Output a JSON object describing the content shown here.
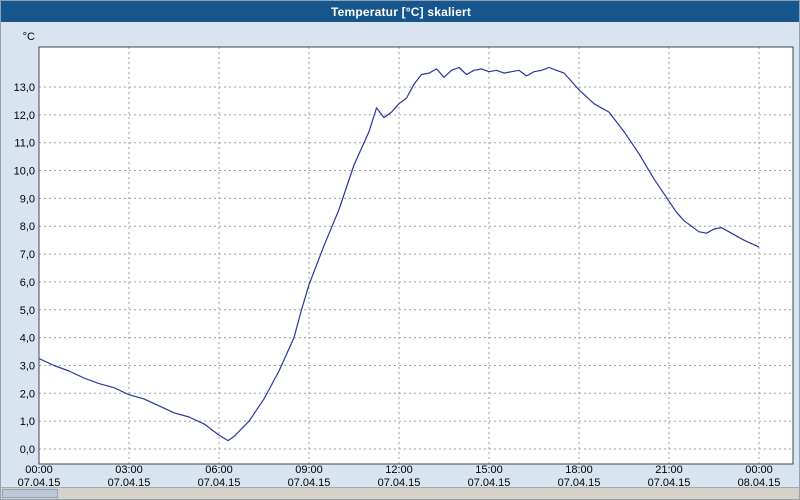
{
  "window": {
    "title": "Temperatur [°C] skaliert"
  },
  "chart_data": {
    "type": "line",
    "title": "Temperatur [°C] skaliert",
    "y_axis_unit": "°C",
    "ylim": [
      0,
      14
    ],
    "xlim_hours": [
      0,
      24
    ],
    "grid": true,
    "grid_style": "dashed",
    "line_color": "#2a35a0",
    "y_ticks": [
      {
        "value": 0,
        "label": "0,0"
      },
      {
        "value": 1,
        "label": "1,0"
      },
      {
        "value": 2,
        "label": "2,0"
      },
      {
        "value": 3,
        "label": "3,0"
      },
      {
        "value": 4,
        "label": "4,0"
      },
      {
        "value": 5,
        "label": "5,0"
      },
      {
        "value": 6,
        "label": "6,0"
      },
      {
        "value": 7,
        "label": "7,0"
      },
      {
        "value": 8,
        "label": "8,0"
      },
      {
        "value": 9,
        "label": "9,0"
      },
      {
        "value": 10,
        "label": "10,0"
      },
      {
        "value": 11,
        "label": "11,0"
      },
      {
        "value": 12,
        "label": "12,0"
      },
      {
        "value": 13,
        "label": "13,0"
      }
    ],
    "x_ticks": [
      {
        "hour": 0,
        "time": "00:00",
        "date": "07.04.15"
      },
      {
        "hour": 3,
        "time": "03:00",
        "date": "07.04.15"
      },
      {
        "hour": 6,
        "time": "06:00",
        "date": "07.04.15"
      },
      {
        "hour": 9,
        "time": "09:00",
        "date": "07.04.15"
      },
      {
        "hour": 12,
        "time": "12:00",
        "date": "07.04.15"
      },
      {
        "hour": 15,
        "time": "15:00",
        "date": "07.04.15"
      },
      {
        "hour": 18,
        "time": "18:00",
        "date": "07.04.15"
      },
      {
        "hour": 21,
        "time": "21:00",
        "date": "07.04.15"
      },
      {
        "hour": 24,
        "time": "00:00",
        "date": "08.04.15"
      }
    ],
    "series": [
      {
        "name": "Temperatur [°C]",
        "x": [
          0,
          0.5,
          1,
          1.5,
          2,
          2.5,
          3,
          3.5,
          4,
          4.5,
          5,
          5.5,
          6,
          6.3,
          6.5,
          7,
          7.5,
          8,
          8.5,
          8.75,
          9,
          9.5,
          10,
          10.5,
          11,
          11.25,
          11.5,
          11.75,
          12,
          12.25,
          12.5,
          12.75,
          13,
          13.25,
          13.5,
          13.75,
          14,
          14.25,
          14.5,
          14.75,
          15,
          15.25,
          15.5,
          15.75,
          16,
          16.25,
          16.5,
          16.75,
          17,
          17.25,
          17.5,
          17.75,
          18,
          18.5,
          19,
          19.5,
          20,
          20.5,
          21,
          21.25,
          21.5,
          21.75,
          22,
          22.25,
          22.5,
          22.75,
          23,
          23.5,
          24
        ],
        "y": [
          3.25,
          3.0,
          2.8,
          2.55,
          2.35,
          2.2,
          1.95,
          1.8,
          1.55,
          1.3,
          1.15,
          0.9,
          0.5,
          0.3,
          0.45,
          1.0,
          1.8,
          2.8,
          4.0,
          5.0,
          5.9,
          7.3,
          8.6,
          10.2,
          11.4,
          12.25,
          11.9,
          12.1,
          12.4,
          12.6,
          13.1,
          13.45,
          13.5,
          13.65,
          13.35,
          13.6,
          13.7,
          13.45,
          13.6,
          13.65,
          13.55,
          13.6,
          13.5,
          13.55,
          13.6,
          13.4,
          13.55,
          13.6,
          13.7,
          13.6,
          13.5,
          13.2,
          12.9,
          12.4,
          12.1,
          11.4,
          10.6,
          9.7,
          8.9,
          8.5,
          8.2,
          8.0,
          7.8,
          7.75,
          7.9,
          7.95,
          7.8,
          7.5,
          7.25
        ]
      }
    ]
  },
  "scrollbar": {
    "orientation": "horizontal"
  }
}
